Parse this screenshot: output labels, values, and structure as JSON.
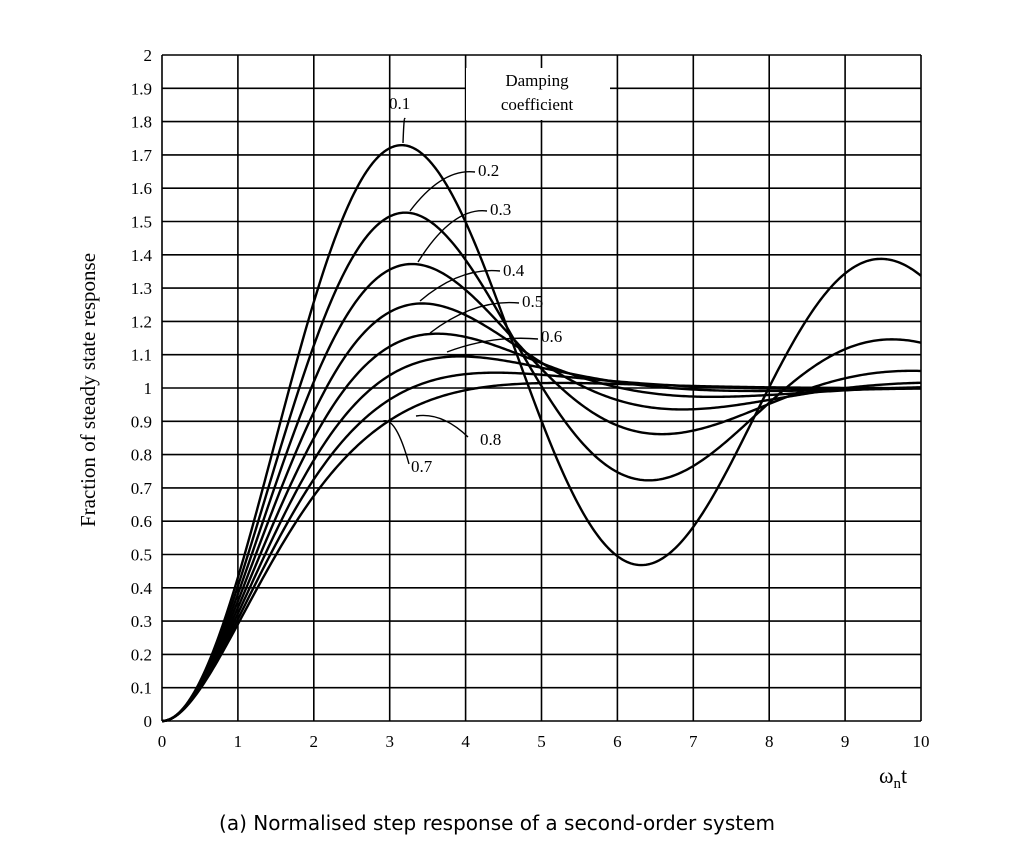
{
  "chart_data": {
    "type": "line",
    "title": "",
    "xlabel": "ωnt",
    "xlabel_main": "ω",
    "xlabel_sub": "n",
    "xlabel_tail": "t",
    "ylabel": "Fraction of steady state response",
    "caption": "(a) Normalised step response of a second-order system",
    "annotation_title_line1": "Damping",
    "annotation_title_line2": "coefficient",
    "xlim": [
      0,
      10
    ],
    "ylim": [
      0,
      2
    ],
    "grid": true,
    "x_ticks": [
      "0",
      "1",
      "2",
      "3",
      "4",
      "5",
      "6",
      "7",
      "8",
      "9",
      "10"
    ],
    "y_ticks": [
      "0",
      "0.1",
      "0.2",
      "0.3",
      "0.4",
      "0.5",
      "0.6",
      "0.7",
      "0.8",
      "0.9",
      "1",
      "1.1",
      "1.2",
      "1.3",
      "1.4",
      "1.5",
      "1.6",
      "1.7",
      "1.8",
      "1.9",
      "2"
    ],
    "series": [
      {
        "name": "0.1",
        "zeta": 0.1
      },
      {
        "name": "0.2",
        "zeta": 0.2
      },
      {
        "name": "0.3",
        "zeta": 0.3
      },
      {
        "name": "0.4",
        "zeta": 0.4
      },
      {
        "name": "0.5",
        "zeta": 0.5
      },
      {
        "name": "0.6",
        "zeta": 0.6
      },
      {
        "name": "0.7",
        "zeta": 0.7
      },
      {
        "name": "0.8",
        "zeta": 0.8
      }
    ]
  }
}
